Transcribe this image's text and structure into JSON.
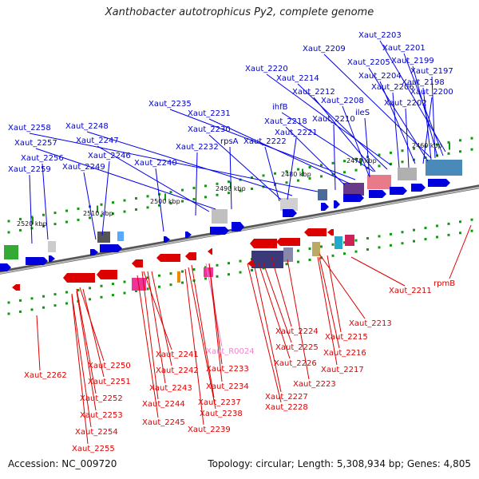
{
  "title": "Xanthobacter autotrophicus Py2, complete genome",
  "footer": {
    "accession": "Accession: NC_009720",
    "summary": "Topology: circular; Length: 5,308,934 bp; Genes: 4,805"
  },
  "colors": {
    "forward": "#0000cc",
    "reverse": "#cc0000",
    "rna": "#ee88cc",
    "backbone": "#888888"
  },
  "kbp_ticks": [
    {
      "text": "2460 kbp"
    },
    {
      "text": "2470 kbp"
    },
    {
      "text": "2480 kbp"
    },
    {
      "text": "2490 kbp"
    },
    {
      "text": "2500 kbp"
    },
    {
      "text": "2510 kbp"
    },
    {
      "text": "2520 kbp"
    }
  ],
  "top_labels": [
    "Xaut_2203",
    "Xaut_2201",
    "Xaut_2209",
    "Xaut_2205",
    "Xaut_2199",
    "Xaut_2204",
    "Xaut_2197",
    "Xaut_2220",
    "Xaut_2214",
    "Xaut_2206",
    "Xaut_2198",
    "Xaut_2212",
    "Xaut_2200",
    "ihfB",
    "Xaut_2208",
    "Xaut_2202",
    "Xaut_2235",
    "ileS",
    "Xaut_2231",
    "Xaut_2218",
    "Xaut_2210",
    "Xaut_2258",
    "Xaut_2248",
    "Xaut_2230",
    "Xaut_2221",
    "Xaut_2257",
    "Xaut_2247",
    "rpsA",
    "Xaut_2222",
    "Xaut_2232",
    "Xaut_2256",
    "Xaut_2246",
    "Xaut_2259",
    "Xaut_2249",
    "Xaut_2240"
  ],
  "bottom_labels": [
    "Xaut_2211",
    "rpmB",
    "Xaut_2213",
    "Xaut_2224",
    "Xaut_2215",
    "Xaut_2241",
    "Xaut_R0024",
    "Xaut_2225",
    "Xaut_2216",
    "Xaut_2250",
    "Xaut_2242",
    "Xaut_2233",
    "Xaut_2226",
    "Xaut_2217",
    "Xaut_2262",
    "Xaut_2251",
    "Xaut_2243",
    "Xaut_2234",
    "Xaut_2223",
    "Xaut_2252",
    "Xaut_2244",
    "Xaut_2237",
    "Xaut_2227",
    "Xaut_2253",
    "Xaut_2245",
    "Xaut_2238",
    "Xaut_2228",
    "Xaut_2239",
    "Xaut_2254",
    "Xaut_2255"
  ]
}
